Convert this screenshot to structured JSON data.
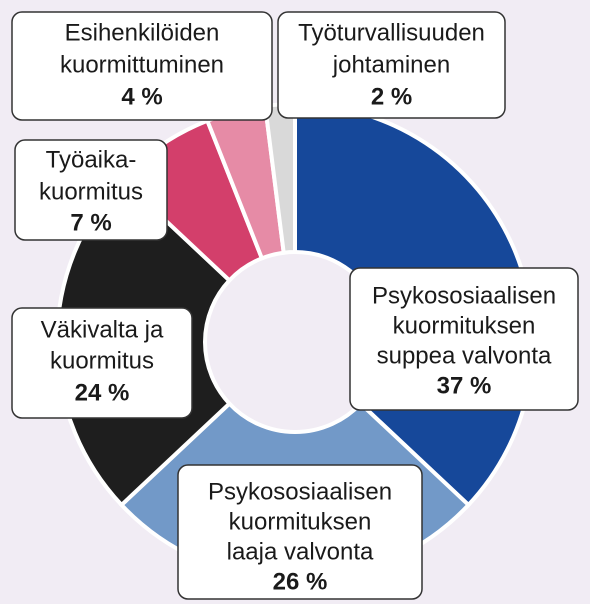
{
  "chart_data": {
    "type": "donut",
    "categories": [
      [
        "Psykososiaalisen",
        "kuormituksen",
        "suppea valvonta"
      ],
      [
        "Psykososiaalisen",
        "kuormituksen",
        "laaja valvonta"
      ],
      [
        "Väkivalta ja",
        "kuormitus"
      ],
      [
        "Työaika-",
        "kuormitus"
      ],
      [
        "Esihenkilöiden",
        "kuormittuminen"
      ],
      [
        "Työturvallisuuden",
        "johtaminen"
      ]
    ],
    "values": [
      37,
      26,
      24,
      7,
      4,
      2
    ],
    "value_labels": [
      "37 %",
      "26 %",
      "24 %",
      "7 %",
      "4 %",
      "2 %"
    ],
    "colors": [
      "#16489a",
      "#7299c8",
      "#1e1e1e",
      "#d33f6b",
      "#e68ba6",
      "#d9d9d9"
    ]
  }
}
